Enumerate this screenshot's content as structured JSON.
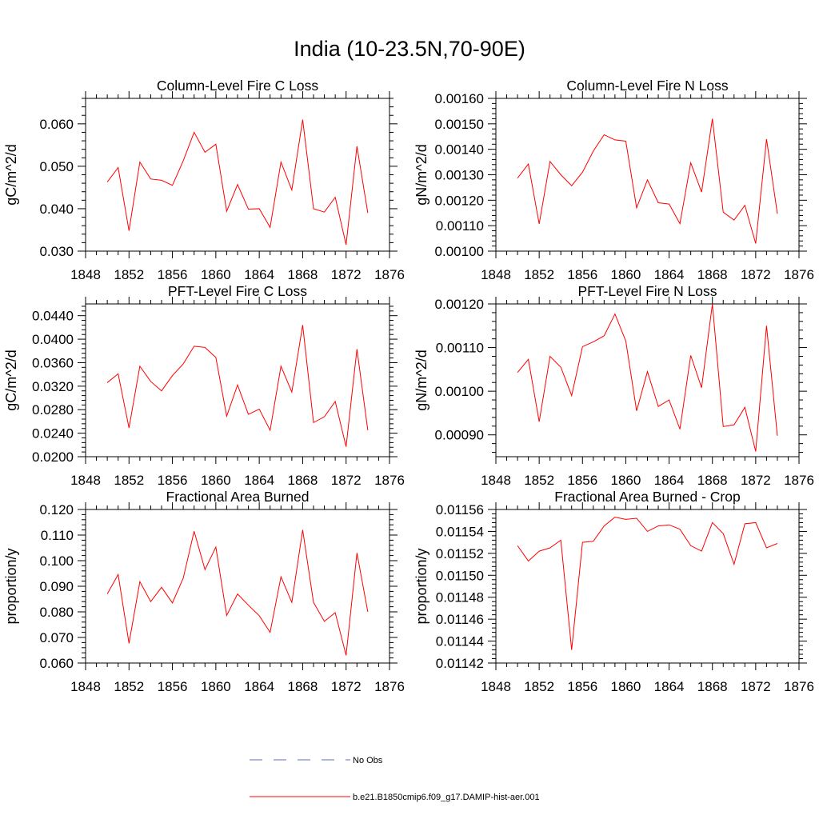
{
  "title": "India (10-23.5N,70-90E)",
  "colors": {
    "model": "#ff0000",
    "obs": "#5b6fb8",
    "axis": "#000000"
  },
  "legend": [
    {
      "label": "No Obs",
      "style": "dashed",
      "color": "#5b6fb8"
    },
    {
      "label": "b.e21.B1850cmip6.f09_g17.DAMIP-hist-aer.001",
      "style": "solid",
      "color": "#ff0000"
    }
  ],
  "chart_data": [
    {
      "type": "line",
      "title": "Column-Level Fire C Loss",
      "ylabel": "gC/m^2/d",
      "xlim": [
        1848,
        1876
      ],
      "xticks": [
        "1848",
        "1852",
        "1856",
        "1860",
        "1864",
        "1868",
        "1872",
        "1876"
      ],
      "ylim": [
        0.03,
        0.066
      ],
      "yticks": [
        "0.030",
        "0.040",
        "0.050",
        "0.060"
      ],
      "x": [
        1850,
        1851,
        1852,
        1853,
        1854,
        1855,
        1856,
        1857,
        1858,
        1859,
        1860,
        1861,
        1862,
        1863,
        1864,
        1865,
        1866,
        1867,
        1868,
        1869,
        1870,
        1871,
        1872,
        1873,
        1874
      ],
      "series": [
        {
          "name": "b.e21.B1850cmip6.f09_g17.DAMIP-hist-aer.001",
          "values": [
            0.0463,
            0.0497,
            0.0348,
            0.051,
            0.047,
            0.0467,
            0.0455,
            0.0513,
            0.058,
            0.0533,
            0.0552,
            0.0394,
            0.0457,
            0.0399,
            0.04,
            0.0356,
            0.051,
            0.0444,
            0.061,
            0.04,
            0.0392,
            0.0427,
            0.0315,
            0.0547,
            0.039
          ]
        }
      ]
    },
    {
      "type": "line",
      "title": "Column-Level Fire N Loss",
      "ylabel": "gN/m^2/d",
      "xlim": [
        1848,
        1876
      ],
      "xticks": [
        "1848",
        "1852",
        "1856",
        "1860",
        "1864",
        "1868",
        "1872",
        "1876"
      ],
      "ylim": [
        0.001,
        0.0016
      ],
      "yticks": [
        "0.00100",
        "0.00110",
        "0.00120",
        "0.00130",
        "0.00140",
        "0.00150",
        "0.00160"
      ],
      "x": [
        1850,
        1851,
        1852,
        1853,
        1854,
        1855,
        1856,
        1857,
        1858,
        1859,
        1860,
        1861,
        1862,
        1863,
        1864,
        1865,
        1866,
        1867,
        1868,
        1869,
        1870,
        1871,
        1872,
        1873,
        1874
      ],
      "series": [
        {
          "name": "b.e21.B1850cmip6.f09_g17.DAMIP-hist-aer.001",
          "values": [
            0.001287,
            0.001342,
            0.001107,
            0.001352,
            0.0013,
            0.001257,
            0.00131,
            0.001393,
            0.001457,
            0.001437,
            0.001432,
            0.00117,
            0.00128,
            0.00119,
            0.001185,
            0.001108,
            0.001347,
            0.001232,
            0.00152,
            0.001153,
            0.001122,
            0.00118,
            0.00103,
            0.00144,
            0.001147
          ]
        }
      ]
    },
    {
      "type": "line",
      "title": "PFT-Level Fire C Loss",
      "ylabel": "gC/m^2/d",
      "xlim": [
        1848,
        1876
      ],
      "xticks": [
        "1848",
        "1852",
        "1856",
        "1860",
        "1864",
        "1868",
        "1872",
        "1876"
      ],
      "ylim": [
        0.02,
        0.046
      ],
      "yticks": [
        "0.0200",
        "0.0240",
        "0.0280",
        "0.0320",
        "0.0360",
        "0.0400",
        "0.0440"
      ],
      "x": [
        1850,
        1851,
        1852,
        1853,
        1854,
        1855,
        1856,
        1857,
        1858,
        1859,
        1860,
        1861,
        1862,
        1863,
        1864,
        1865,
        1866,
        1867,
        1868,
        1869,
        1870,
        1871,
        1872,
        1873,
        1874
      ],
      "series": [
        {
          "name": "b.e21.B1850cmip6.f09_g17.DAMIP-hist-aer.001",
          "values": [
            0.0326,
            0.0341,
            0.0249,
            0.0354,
            0.0328,
            0.0312,
            0.0338,
            0.0358,
            0.0388,
            0.0386,
            0.0369,
            0.0269,
            0.0322,
            0.0272,
            0.0281,
            0.0245,
            0.0354,
            0.031,
            0.0424,
            0.0258,
            0.0268,
            0.0294,
            0.0217,
            0.0383,
            0.0245
          ]
        }
      ]
    },
    {
      "type": "line",
      "title": "PFT-Level Fire N Loss",
      "ylabel": "gN/m^2/d",
      "xlim": [
        1848,
        1876
      ],
      "xticks": [
        "1848",
        "1852",
        "1856",
        "1860",
        "1864",
        "1868",
        "1872",
        "1876"
      ],
      "ylim": [
        0.00085,
        0.0012
      ],
      "yticks": [
        "0.00090",
        "0.00100",
        "0.00110",
        "0.00120"
      ],
      "x": [
        1850,
        1851,
        1852,
        1853,
        1854,
        1855,
        1856,
        1857,
        1858,
        1859,
        1860,
        1861,
        1862,
        1863,
        1864,
        1865,
        1866,
        1867,
        1868,
        1869,
        1870,
        1871,
        1872,
        1873,
        1874
      ],
      "series": [
        {
          "name": "b.e21.B1850cmip6.f09_g17.DAMIP-hist-aer.001",
          "values": [
            0.001043,
            0.001073,
            0.00093,
            0.00108,
            0.001055,
            0.00099,
            0.001102,
            0.001113,
            0.001127,
            0.001177,
            0.001115,
            0.000955,
            0.001045,
            0.000965,
            0.00098,
            0.000913,
            0.001082,
            0.001008,
            0.0012,
            0.000919,
            0.000923,
            0.000963,
            0.000862,
            0.00115,
            0.000898
          ]
        }
      ]
    },
    {
      "type": "line",
      "title": "Fractional Area Burned",
      "ylabel": "proportion/y",
      "xlim": [
        1848,
        1876
      ],
      "xticks": [
        "1848",
        "1852",
        "1856",
        "1860",
        "1864",
        "1868",
        "1872",
        "1876"
      ],
      "ylim": [
        0.06,
        0.12
      ],
      "yticks": [
        "0.060",
        "0.070",
        "0.080",
        "0.090",
        "0.100",
        "0.110",
        "0.120"
      ],
      "x": [
        1850,
        1851,
        1852,
        1853,
        1854,
        1855,
        1856,
        1857,
        1858,
        1859,
        1860,
        1861,
        1862,
        1863,
        1864,
        1865,
        1866,
        1867,
        1868,
        1869,
        1870,
        1871,
        1872,
        1873,
        1874
      ],
      "series": [
        {
          "name": "b.e21.B1850cmip6.f09_g17.DAMIP-hist-aer.001",
          "values": [
            0.087,
            0.0946,
            0.0677,
            0.0918,
            0.084,
            0.0896,
            0.0835,
            0.0932,
            0.1115,
            0.0965,
            0.1053,
            0.0786,
            0.087,
            0.0826,
            0.0785,
            0.072,
            0.0937,
            0.0837,
            0.112,
            0.0837,
            0.0763,
            0.0797,
            0.063,
            0.103,
            0.08
          ]
        }
      ]
    },
    {
      "type": "line",
      "title": "Fractional Area Burned - Crop",
      "ylabel": "proportion/y",
      "xlim": [
        1848,
        1876
      ],
      "xticks": [
        "1848",
        "1852",
        "1856",
        "1860",
        "1864",
        "1868",
        "1872",
        "1876"
      ],
      "ylim": [
        0.01142,
        0.01156
      ],
      "yticks": [
        "0.01142",
        "0.01144",
        "0.01146",
        "0.01148",
        "0.01150",
        "0.01152",
        "0.01154",
        "0.01156"
      ],
      "x": [
        1850,
        1851,
        1852,
        1853,
        1854,
        1855,
        1856,
        1857,
        1858,
        1859,
        1860,
        1861,
        1862,
        1863,
        1864,
        1865,
        1866,
        1867,
        1868,
        1869,
        1870,
        1871,
        1872,
        1873,
        1874
      ],
      "series": [
        {
          "name": "b.e21.B1850cmip6.f09_g17.DAMIP-hist-aer.001",
          "values": [
            0.011527,
            0.011513,
            0.011522,
            0.011525,
            0.011532,
            0.011432,
            0.01153,
            0.011531,
            0.011545,
            0.011553,
            0.011551,
            0.011552,
            0.01154,
            0.011545,
            0.011546,
            0.011542,
            0.011527,
            0.011522,
            0.011548,
            0.011538,
            0.01151,
            0.011547,
            0.011548,
            0.011525,
            0.011529
          ]
        }
      ]
    }
  ]
}
